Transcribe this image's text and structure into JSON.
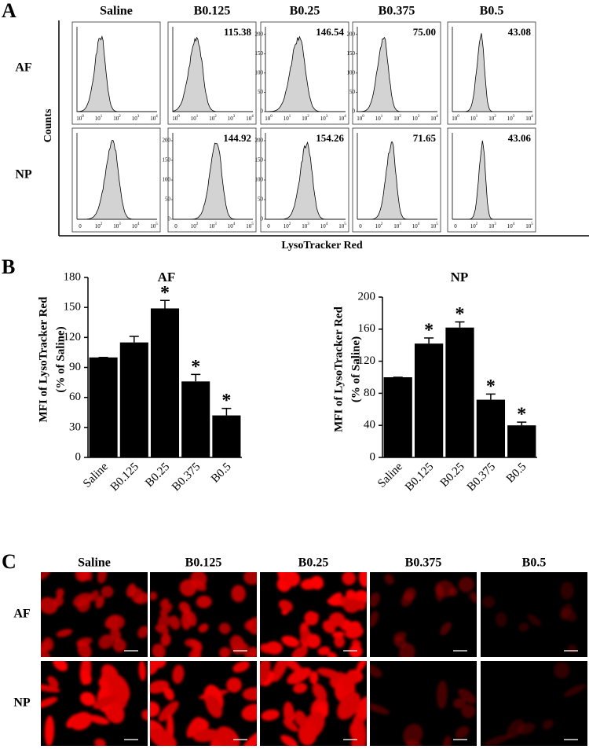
{
  "panel_labels": [
    "A",
    "B",
    "C"
  ],
  "histograms": {
    "columns": [
      "Saline",
      "B0.125",
      "B0.25",
      "B0.375",
      "B0.5"
    ],
    "rows": [
      "AF",
      "NP"
    ],
    "ylabel": "Counts",
    "xlabel": "LysoTracker Red",
    "values": [
      [
        null,
        "115.38",
        "146.54",
        "75.00",
        "43.08"
      ],
      [
        null,
        "144.92",
        "154.26",
        "71.65",
        "43.06"
      ]
    ],
    "xticks": [
      [
        {
          "base": "10",
          "exp": "0"
        },
        {
          "base": "10",
          "exp": "1"
        },
        {
          "base": "10",
          "exp": "2"
        },
        {
          "base": "10",
          "exp": "3"
        },
        {
          "base": "10",
          "exp": "4"
        }
      ],
      [
        {
          "base": "0"
        },
        {
          "base": "10",
          "exp": "2"
        },
        {
          "base": "10",
          "exp": "3"
        },
        {
          "base": "10",
          "exp": "4"
        },
        {
          "base": "10",
          "exp": "5"
        }
      ]
    ],
    "ylim": [
      0,
      220
    ],
    "yticks": [
      [
        null,
        null,
        [
          0,
          50,
          100,
          150,
          200
        ],
        [
          0,
          50,
          100,
          150,
          200
        ],
        null
      ],
      [
        null,
        [
          0,
          50,
          100,
          150,
          200
        ],
        [
          0,
          50,
          100,
          150,
          200
        ],
        null,
        null
      ]
    ]
  },
  "chart_data": [
    {
      "type": "bar",
      "title": "AF",
      "ylabel": [
        "MFI of LysoTracker Red",
        "(% of Saline)"
      ],
      "categories": [
        "Saline",
        "B0.125",
        "B0.25",
        "B0.375",
        "B0.5"
      ],
      "values": [
        100,
        115,
        149,
        76,
        42
      ],
      "errors": [
        0,
        6,
        8,
        7,
        7
      ],
      "significance": [
        null,
        null,
        "*",
        "*",
        "*"
      ],
      "color": "#000000",
      "ylim": [
        0,
        180
      ],
      "yticks": [
        0,
        30,
        60,
        90,
        120,
        150,
        180
      ]
    },
    {
      "type": "bar",
      "title": "NP",
      "ylabel": [
        "MFI of LysoTracker Red",
        "(% of Saline)"
      ],
      "categories": [
        "Saline",
        "B0.125",
        "B0.25",
        "B0.375",
        "B0.5"
      ],
      "values": [
        100,
        142,
        162,
        72,
        40
      ],
      "errors": [
        0,
        7,
        7,
        7,
        4
      ],
      "significance": [
        null,
        "*",
        "*",
        "*",
        "*"
      ],
      "color": "#000000",
      "ylim": [
        0,
        200
      ],
      "yticks": [
        0,
        40,
        80,
        120,
        160,
        200
      ]
    }
  ],
  "images": {
    "columns": [
      "Saline",
      "B0.125",
      "B0.25",
      "B0.375",
      "B0.5"
    ],
    "rows": [
      "AF",
      "NP"
    ]
  }
}
